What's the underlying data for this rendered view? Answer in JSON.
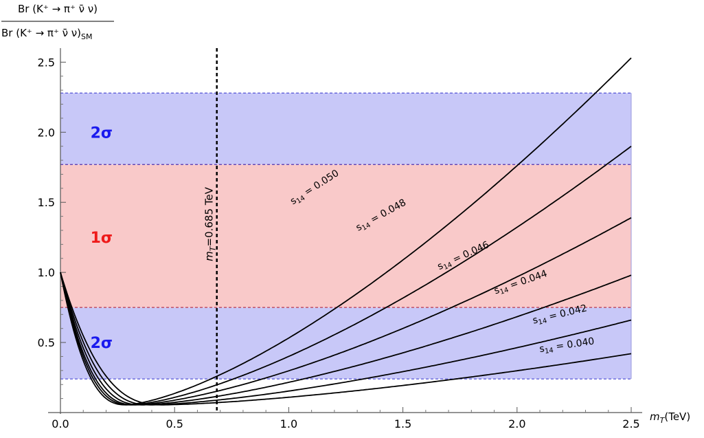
{
  "chart_data": {
    "type": "line",
    "ylabel_num": "Br (K⁺ → π⁺ ν̄ ν)",
    "ylabel_den": "Br (K⁺ → π⁺ ν̄ ν)",
    "ylabel_den_sub": "SM",
    "xlabel": "m",
    "xlabel_sub": "T",
    "xlabel_unit": "(TeV)",
    "xlim": [
      0,
      2.5
    ],
    "ylim": [
      0,
      2.6
    ],
    "x_ticks": [
      "0.0",
      "0.5",
      "1.0",
      "1.5",
      "2.0",
      "2.5"
    ],
    "y_ticks": [
      "0.5",
      "1.0",
      "1.5",
      "2.0",
      "2.5"
    ],
    "bands": [
      {
        "name": "2σ",
        "y_low": 0.24,
        "y_high": 0.75,
        "color": "#c8c8f8",
        "edge": "#3333cc",
        "label_color": "#1a1aee"
      },
      {
        "name": "1σ",
        "y_low": 0.75,
        "y_high": 1.77,
        "color": "#f9c9c9",
        "edge": "#cc3333",
        "label_color": "#ee1a1a"
      },
      {
        "name": "2σ",
        "y_low": 1.77,
        "y_high": 2.28,
        "color": "#c8c8f8",
        "edge": "#3333cc",
        "label_color": "#1a1aee"
      }
    ],
    "band_labels": [
      {
        "text": "2σ",
        "x": 0.18,
        "y": 0.5
      },
      {
        "text": "1σ",
        "x": 0.18,
        "y": 1.25
      },
      {
        "text": "2σ",
        "x": 0.18,
        "y": 2.0
      }
    ],
    "vertical_line": {
      "x": 0.685,
      "label": "m",
      "label_sub": "T",
      "label_rest": "=0.685 TeV"
    },
    "series": [
      {
        "name": "s14 = 0.040",
        "label_pre": "s",
        "label_sub": "14",
        "label_post": " = 0.040",
        "min_x": 0.45,
        "min_y": 0.055,
        "end_y": 0.42,
        "label_x": 2.22,
        "label_y": 0.46
      },
      {
        "name": "s14 = 0.042",
        "label_pre": "s",
        "label_sub": "14",
        "label_post": " = 0.042",
        "min_x": 0.4,
        "min_y": 0.055,
        "end_y": 0.66,
        "label_x": 2.19,
        "label_y": 0.68
      },
      {
        "name": "s14 = 0.044",
        "label_pre": "s",
        "label_sub": "14",
        "label_post": " = 0.044",
        "min_x": 0.36,
        "min_y": 0.055,
        "end_y": 0.98,
        "label_x": 2.02,
        "label_y": 0.91
      },
      {
        "name": "s14 = 0.046",
        "label_pre": "s",
        "label_sub": "14",
        "label_post": " = 0.046",
        "min_x": 0.33,
        "min_y": 0.055,
        "end_y": 1.39,
        "label_x": 1.77,
        "label_y": 1.1
      },
      {
        "name": "s14 = 0.048",
        "label_pre": "s",
        "label_sub": "14",
        "label_post": " = 0.048",
        "min_x": 0.31,
        "min_y": 0.055,
        "end_y": 1.9,
        "label_x": 1.41,
        "label_y": 1.39
      },
      {
        "name": "s14 = 0.050",
        "label_pre": "s",
        "label_sub": "14",
        "label_post": " = 0.050",
        "min_x": 0.29,
        "min_y": 0.055,
        "end_y": 2.53,
        "label_x": 1.12,
        "label_y": 1.59
      }
    ],
    "start_y": 1.0
  }
}
